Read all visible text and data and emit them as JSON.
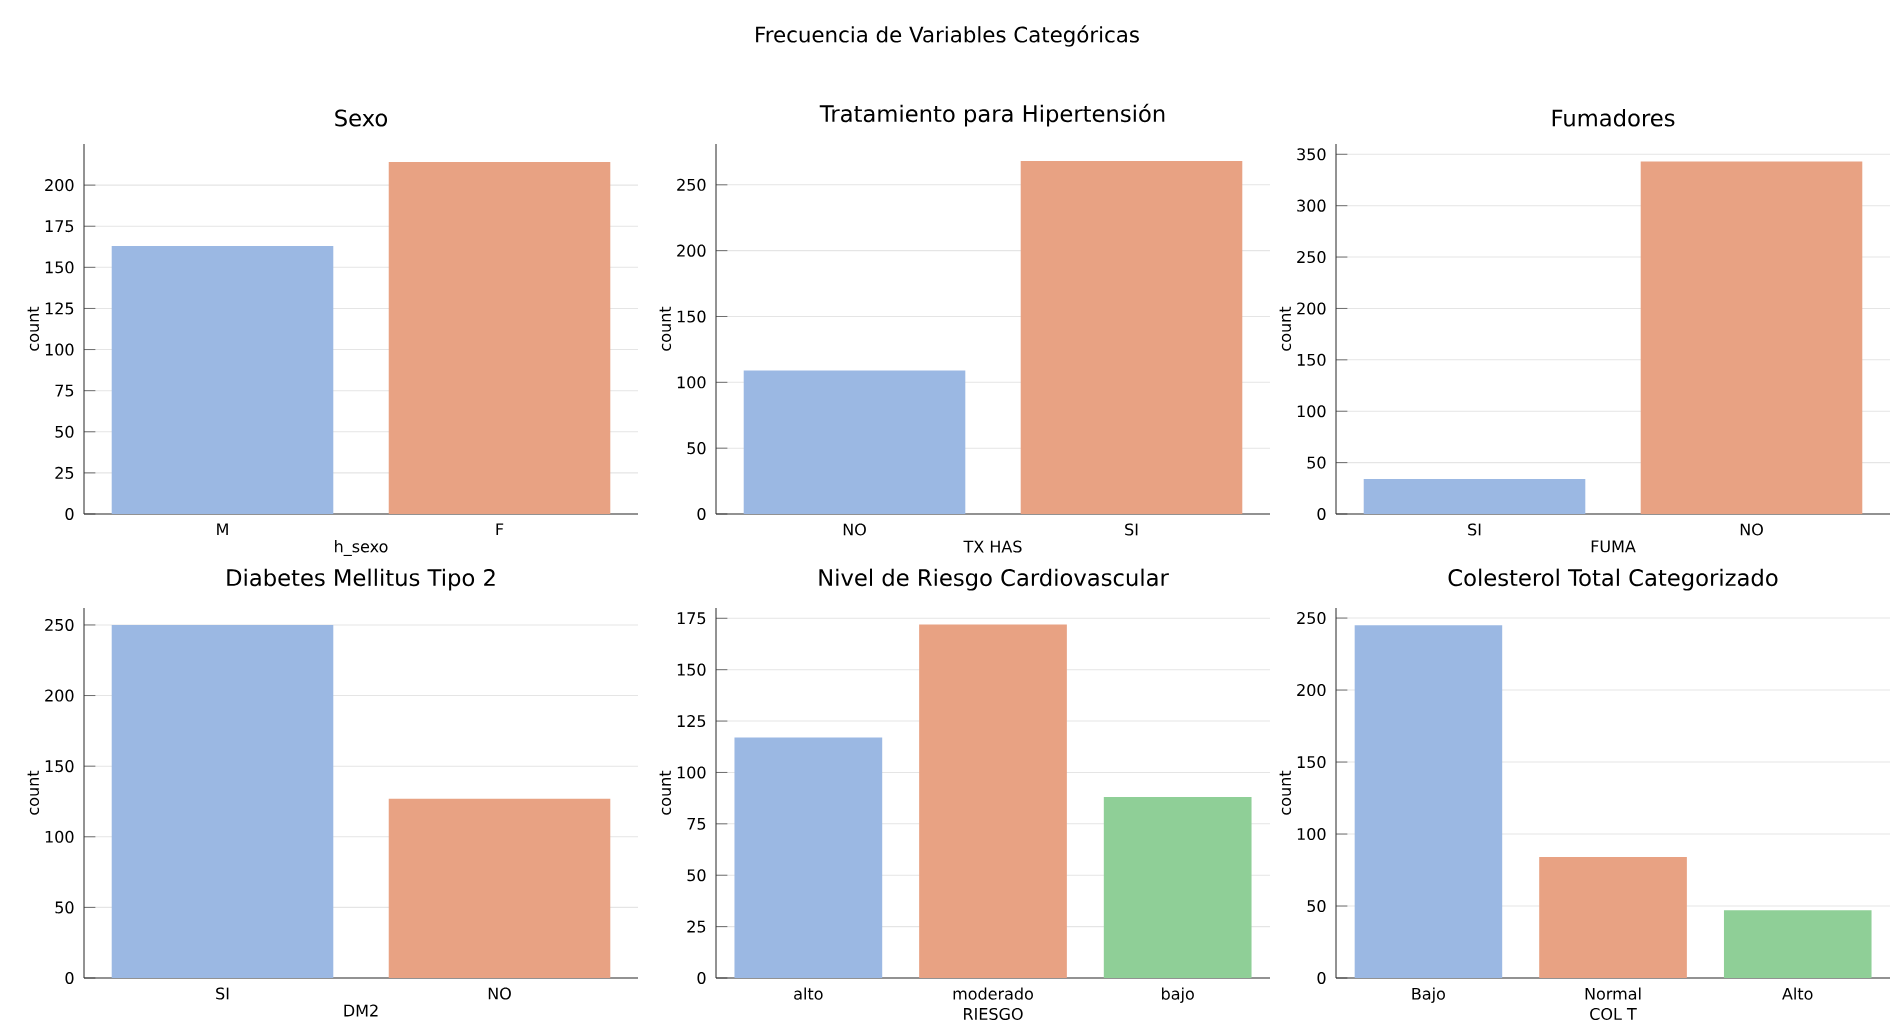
{
  "chart_data": [
    {
      "type": "bar",
      "annotations": [
        "Frecuencia de Variables Categóricas"
      ],
      "title": "Sexo",
      "xlabel": "h_sexo",
      "ylabel": "count",
      "categories": [
        "M",
        "F"
      ],
      "values": [
        163,
        214
      ],
      "colors": [
        "#9bb8e3",
        "#e8a283"
      ],
      "ylim": [
        0,
        225
      ],
      "yticks": [
        0,
        25,
        50,
        75,
        100,
        125,
        150,
        175,
        200
      ],
      "grid": "y"
    },
    {
      "type": "bar",
      "title": "Tratamiento para Hipertensión",
      "xlabel": "TX HAS",
      "ylabel": "count",
      "categories": [
        "NO",
        "SI"
      ],
      "values": [
        109,
        268
      ],
      "colors": [
        "#9bb8e3",
        "#e8a283"
      ],
      "ylim": [
        0,
        281
      ],
      "yticks": [
        0,
        50,
        100,
        150,
        200,
        250
      ],
      "grid": "y"
    },
    {
      "type": "bar",
      "title": "Fumadores",
      "xlabel": "FUMA",
      "ylabel": "count",
      "categories": [
        "SI",
        "NO"
      ],
      "values": [
        34,
        343
      ],
      "colors": [
        "#9bb8e3",
        "#e8a283"
      ],
      "ylim": [
        0,
        360
      ],
      "yticks": [
        0,
        50,
        100,
        150,
        200,
        250,
        300,
        350
      ],
      "grid": "y"
    },
    {
      "type": "bar",
      "title": "Diabetes Mellitus Tipo 2",
      "xlabel": "DM2",
      "ylabel": "count",
      "categories": [
        "SI",
        "NO"
      ],
      "values": [
        250,
        127
      ],
      "colors": [
        "#9bb8e3",
        "#e8a283"
      ],
      "ylim": [
        0,
        262
      ],
      "yticks": [
        0,
        50,
        100,
        150,
        200,
        250
      ],
      "grid": "y"
    },
    {
      "type": "bar",
      "title": "Nivel de Riesgo Cardiovascular",
      "xlabel": "RIESGO",
      "ylabel": "count",
      "categories": [
        "alto",
        "moderado",
        "bajo"
      ],
      "values": [
        117,
        172,
        88
      ],
      "colors": [
        "#9bb8e3",
        "#e8a283",
        "#8fcf97"
      ],
      "ylim": [
        0,
        180
      ],
      "yticks": [
        0,
        25,
        50,
        75,
        100,
        125,
        150,
        175
      ],
      "grid": "y"
    },
    {
      "type": "bar",
      "title": "Colesterol Total Categorizado",
      "xlabel": "COL T",
      "ylabel": "count",
      "categories": [
        "Bajo",
        "Normal",
        "Alto"
      ],
      "values": [
        245,
        84,
        47
      ],
      "colors": [
        "#9bb8e3",
        "#e8a283",
        "#8fcf97"
      ],
      "ylim": [
        0,
        257
      ],
      "yticks": [
        0,
        50,
        100,
        150,
        200,
        250
      ],
      "grid": "y"
    }
  ]
}
